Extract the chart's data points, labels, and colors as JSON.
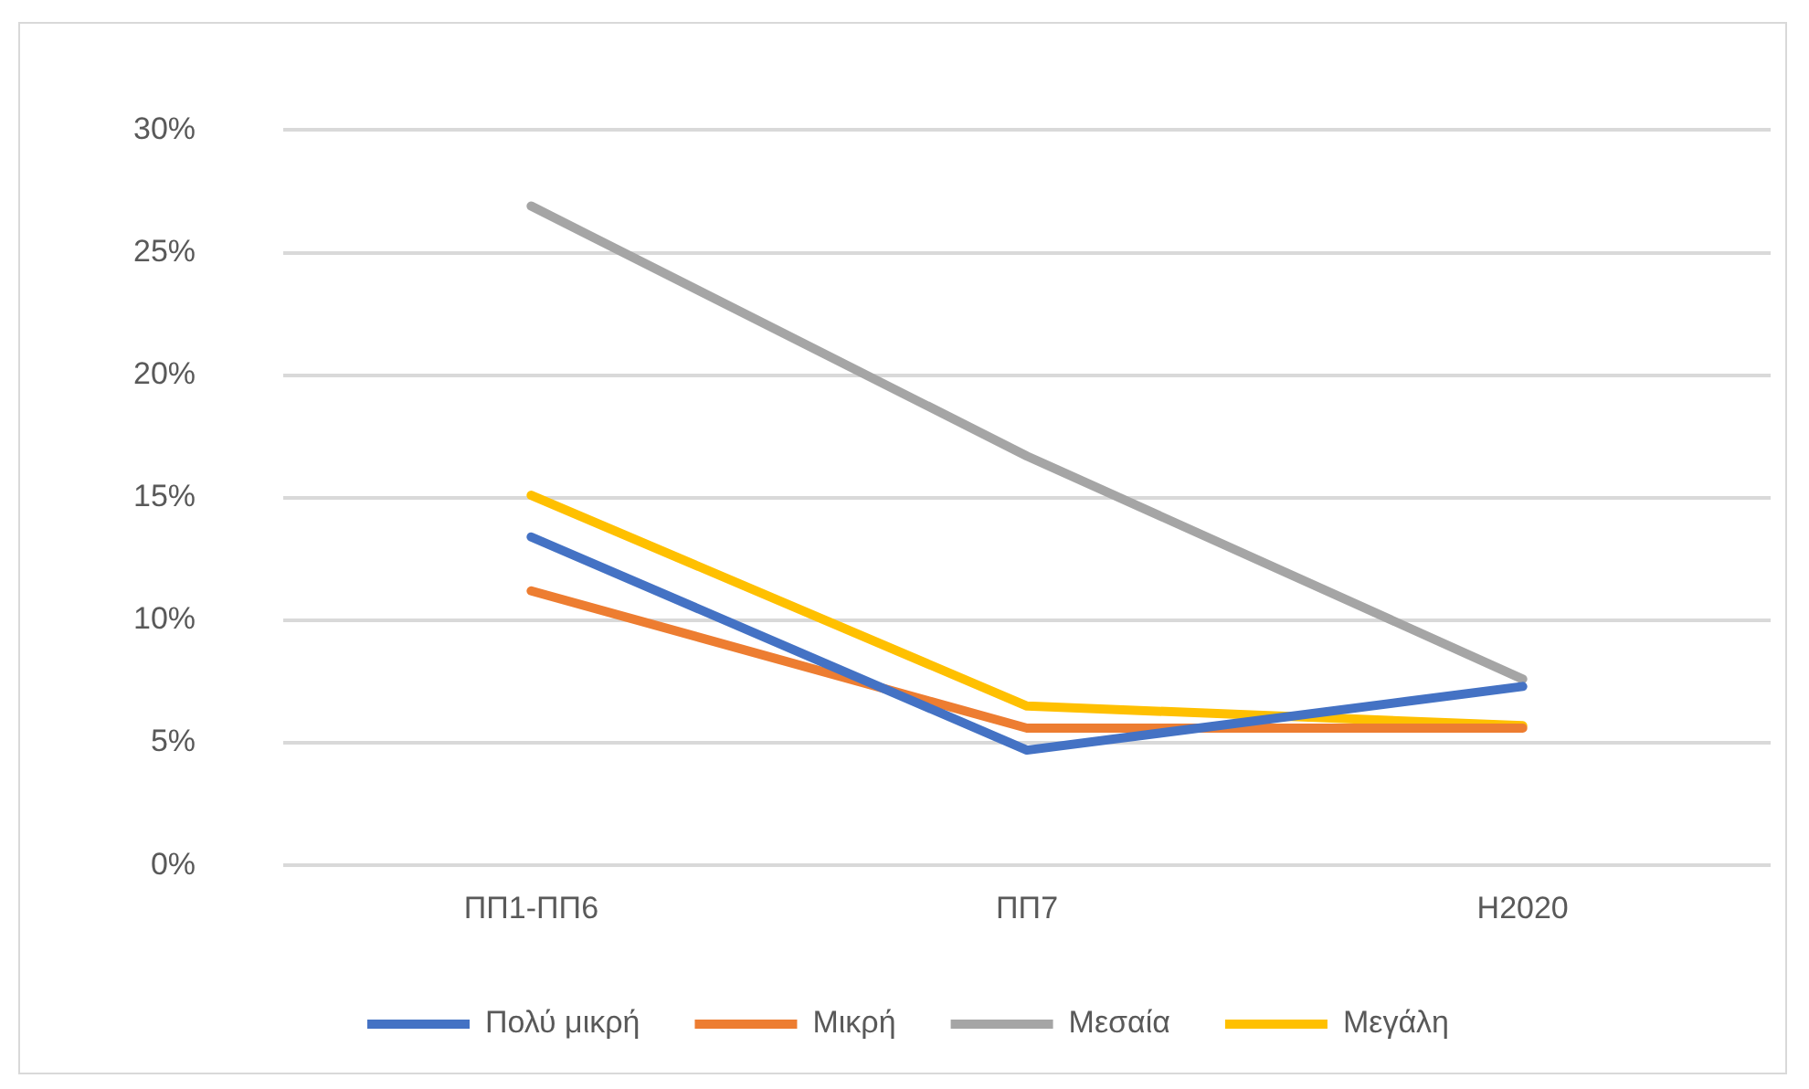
{
  "chart_data": {
    "type": "line",
    "categories": [
      "ΠΠ1-ΠΠ6",
      "ΠΠ7",
      "H2020"
    ],
    "series": [
      {
        "name": "Πολύ μικρή",
        "color": "#4472c4",
        "values": [
          13.4,
          4.7,
          7.3
        ]
      },
      {
        "name": "Μικρή",
        "color": "#ed7d31",
        "values": [
          11.2,
          5.6,
          5.6
        ]
      },
      {
        "name": "Μεσαία",
        "color": "#a5a5a5",
        "values": [
          26.9,
          16.7,
          7.6
        ]
      },
      {
        "name": "Μεγάλη",
        "color": "#ffc000",
        "values": [
          15.1,
          6.5,
          5.7
        ]
      }
    ],
    "ylim": [
      0,
      30
    ],
    "yticks": [
      {
        "value": 0,
        "label": "0%"
      },
      {
        "value": 5,
        "label": "5%"
      },
      {
        "value": 10,
        "label": "10%"
      },
      {
        "value": 15,
        "label": "15%"
      },
      {
        "value": 20,
        "label": "20%"
      },
      {
        "value": 25,
        "label": "25%"
      },
      {
        "value": 30,
        "label": "30%"
      }
    ],
    "grid": "y",
    "legend": "bottom",
    "marker": "none",
    "line_style": "solid"
  }
}
